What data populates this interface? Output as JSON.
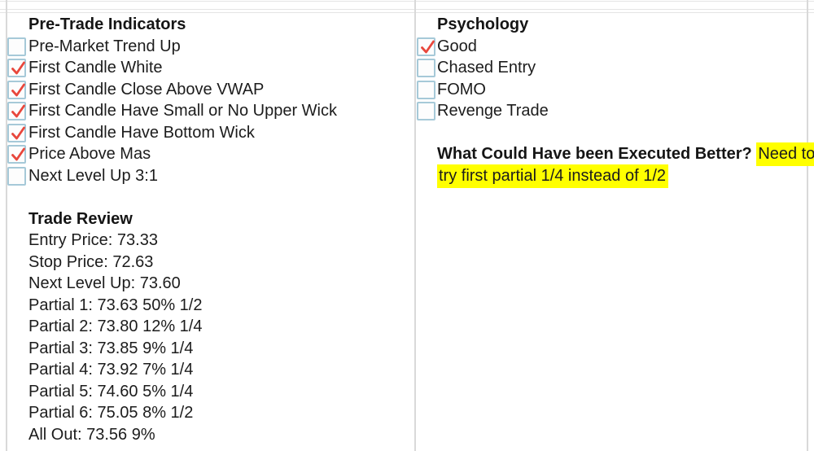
{
  "colors": {
    "highlight": "#ffff00",
    "check_mark": "#e8473c",
    "checkbox_border": "#a6c9d8",
    "grid_line": "#d9d9d9",
    "text": "#1c1c1c"
  },
  "left_panel": {
    "pretrade": {
      "title": "Pre-Trade Indicators",
      "items": [
        {
          "label": "Pre-Market Trend Up",
          "checked": false
        },
        {
          "label": "First Candle White",
          "checked": true
        },
        {
          "label": "First Candle Close Above VWAP",
          "checked": true
        },
        {
          "label": "First Candle Have Small or No Upper Wick",
          "checked": true
        },
        {
          "label": "First Candle Have Bottom Wick",
          "checked": true
        },
        {
          "label": "Price Above Mas",
          "checked": true
        },
        {
          "label": "Next Level Up 3:1",
          "checked": false
        }
      ]
    },
    "trade_review": {
      "title": "Trade Review",
      "lines": [
        "Entry Price: 73.33",
        "Stop Price: 72.63",
        "Next Level Up: 73.60",
        "Partial 1: 73.63 50% 1/2",
        "Partial 2: 73.80 12% 1/4",
        "Partial 3: 73.85 9% 1/4",
        "Partial 4: 73.92 7% 1/4",
        "Partial 5: 74.60 5% 1/4",
        "Partial 6: 75.05 8% 1/2",
        "All Out: 73.56 9%"
      ]
    }
  },
  "right_panel": {
    "psychology": {
      "title": "Psychology",
      "items": [
        {
          "label": "Good",
          "checked": true
        },
        {
          "label": "Chased Entry",
          "checked": false
        },
        {
          "label": "FOMO",
          "checked": false
        },
        {
          "label": "Revenge Trade",
          "checked": false
        }
      ]
    },
    "improvement": {
      "question": "What Could Have been Executed Better?",
      "answer": "Need to try first partial 1/4 instead of 1/2",
      "answer_line1": "Need to",
      "answer_line2": "try first partial 1/4 instead of 1/2"
    }
  }
}
